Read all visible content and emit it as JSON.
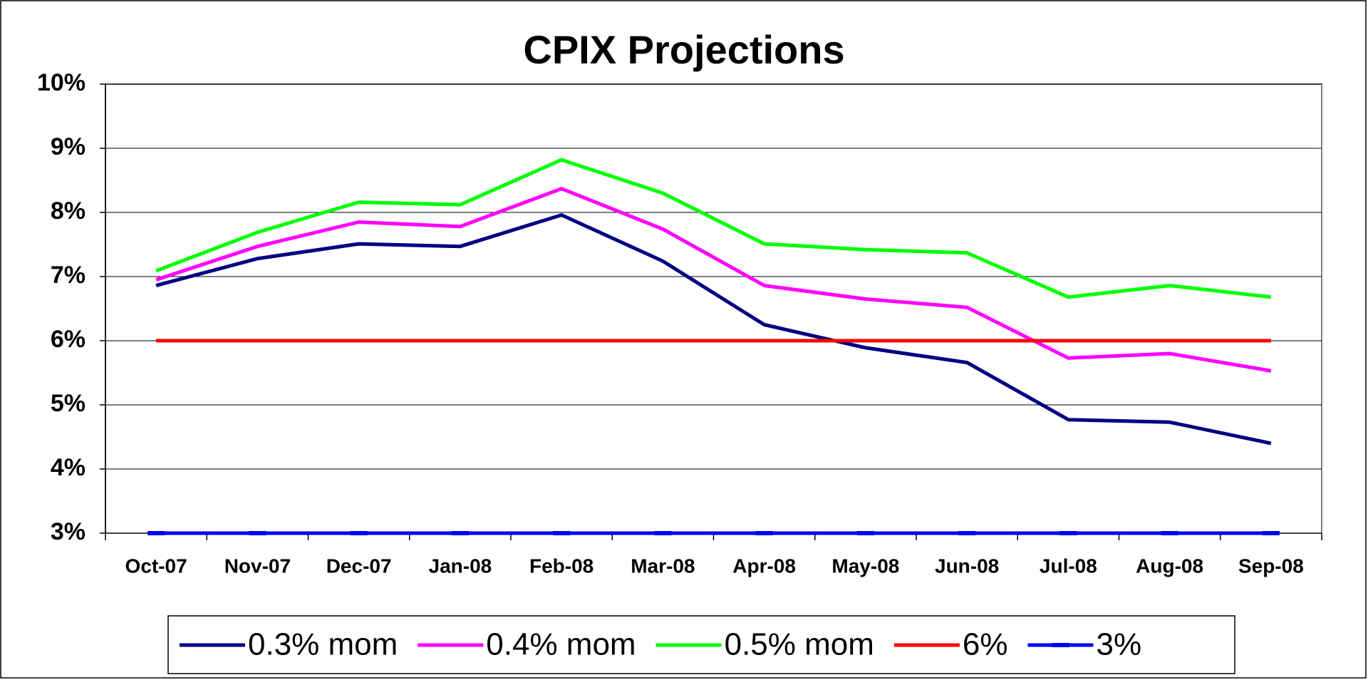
{
  "chart_data": {
    "type": "line",
    "title": "CPIX Projections",
    "categories": [
      "Oct-07",
      "Nov-07",
      "Dec-07",
      "Jan-08",
      "Feb-08",
      "Mar-08",
      "Apr-08",
      "May-08",
      "Jun-08",
      "Jul-08",
      "Aug-08",
      "Sep-08"
    ],
    "series": [
      {
        "name": "0.3% mom",
        "color": "#000080",
        "values": [
          6.86,
          7.28,
          7.51,
          7.47,
          7.96,
          7.24,
          6.25,
          5.89,
          5.66,
          4.77,
          4.73,
          4.4
        ]
      },
      {
        "name": "0.4% mom",
        "color": "#ff00ff",
        "values": [
          6.95,
          7.47,
          7.85,
          7.78,
          8.37,
          7.74,
          6.86,
          6.65,
          6.52,
          5.73,
          5.8,
          5.53
        ]
      },
      {
        "name": "0.5% mom",
        "color": "#00ff00",
        "values": [
          7.09,
          7.69,
          8.16,
          8.12,
          8.82,
          8.3,
          7.51,
          7.42,
          7.37,
          6.68,
          6.86,
          6.68
        ]
      },
      {
        "name": "6%",
        "color": "#ff0000",
        "values": [
          6,
          6,
          6,
          6,
          6,
          6,
          6,
          6,
          6,
          6,
          6,
          6
        ]
      },
      {
        "name": "3%",
        "color": "#0000ff",
        "markers": true,
        "values": [
          3,
          3,
          3,
          3,
          3,
          3,
          3,
          3,
          3,
          3,
          3,
          3
        ]
      }
    ],
    "ylim": [
      3,
      10
    ],
    "yticks": [
      {
        "value": 3,
        "label": "3%"
      },
      {
        "value": 4,
        "label": "4%"
      },
      {
        "value": 5,
        "label": "5%"
      },
      {
        "value": 6,
        "label": "6%"
      },
      {
        "value": 7,
        "label": "7%"
      },
      {
        "value": 8,
        "label": "8%"
      },
      {
        "value": 9,
        "label": "9%"
      },
      {
        "value": 10,
        "label": "10%"
      }
    ],
    "grid": true,
    "legend": "bottom"
  }
}
